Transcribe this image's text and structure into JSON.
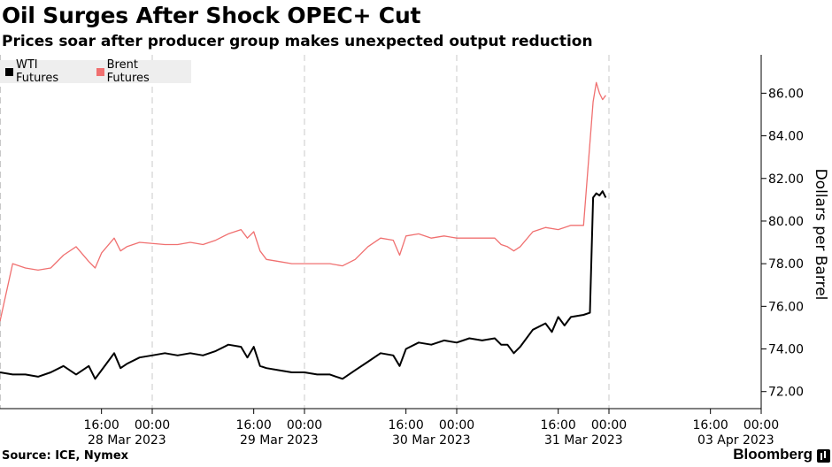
{
  "title": "Oil Surges After Shock OPEC+ Cut",
  "subtitle": "Prices soar after producer group makes unexpected output reduction",
  "source": "Source: ICE, Nymex",
  "brand": "Bloomberg",
  "chart_data": {
    "type": "line",
    "ylabel": "Dollars per Barrel",
    "ylim": [
      71.2,
      87.8
    ],
    "yticks": [
      72,
      74,
      76,
      78,
      80,
      82,
      84,
      86
    ],
    "ytick_labels": [
      "72.00",
      "74.00",
      "76.00",
      "78.00",
      "80.00",
      "82.00",
      "84.00",
      "86.00"
    ],
    "xlim": [
      0,
      120
    ],
    "x_unit": "hours from 00:00 28 Mar 2023",
    "xticks": [
      16,
      24,
      40,
      48,
      64,
      72,
      88,
      96,
      112,
      120
    ],
    "xtick_labels": [
      "16:00",
      "00:00",
      "16:00",
      "00:00",
      "16:00",
      "00:00",
      "16:00",
      "00:00",
      "16:00",
      "00:00"
    ],
    "date_labels": [
      {
        "x": 20,
        "label": "28 Mar 2023"
      },
      {
        "x": 44,
        "label": "29 Mar 2023"
      },
      {
        "x": 68,
        "label": "30 Mar 2023"
      },
      {
        "x": 92,
        "label": "31 Mar 2023"
      },
      {
        "x": 116,
        "label": "03 Apr 2023"
      }
    ],
    "session_breaks": [
      0,
      24,
      48,
      72,
      96
    ],
    "legend_position": "top-left",
    "grid": "vertical",
    "series": [
      {
        "name": "WTI Futures",
        "color": "#000000",
        "points": [
          [
            0,
            72.9
          ],
          [
            2,
            72.8
          ],
          [
            4,
            72.8
          ],
          [
            6,
            72.7
          ],
          [
            8,
            72.9
          ],
          [
            10,
            73.2
          ],
          [
            12,
            72.8
          ],
          [
            14,
            73.2
          ],
          [
            15,
            72.6
          ],
          [
            16,
            73.0
          ],
          [
            18,
            73.8
          ],
          [
            19,
            73.1
          ],
          [
            20,
            73.3
          ],
          [
            22,
            73.6
          ],
          [
            24,
            73.7
          ],
          [
            26,
            73.8
          ],
          [
            28,
            73.7
          ],
          [
            30,
            73.8
          ],
          [
            32,
            73.7
          ],
          [
            34,
            73.9
          ],
          [
            36,
            74.2
          ],
          [
            38,
            74.1
          ],
          [
            39,
            73.6
          ],
          [
            40,
            74.1
          ],
          [
            41,
            73.2
          ],
          [
            42,
            73.1
          ],
          [
            44,
            73.0
          ],
          [
            46,
            72.9
          ],
          [
            48,
            72.9
          ],
          [
            50,
            72.8
          ],
          [
            52,
            72.8
          ],
          [
            53,
            72.7
          ],
          [
            54,
            72.6
          ],
          [
            56,
            73.0
          ],
          [
            58,
            73.4
          ],
          [
            60,
            73.8
          ],
          [
            62,
            73.7
          ],
          [
            63,
            73.2
          ],
          [
            64,
            74.0
          ],
          [
            66,
            74.3
          ],
          [
            68,
            74.2
          ],
          [
            70,
            74.4
          ],
          [
            72,
            74.3
          ],
          [
            74,
            74.5
          ],
          [
            76,
            74.4
          ],
          [
            78,
            74.5
          ],
          [
            79,
            74.2
          ],
          [
            80,
            74.2
          ],
          [
            81,
            73.8
          ],
          [
            82,
            74.1
          ],
          [
            84,
            74.9
          ],
          [
            86,
            75.2
          ],
          [
            87,
            74.8
          ],
          [
            88,
            75.5
          ],
          [
            89,
            75.1
          ],
          [
            90,
            75.5
          ],
          [
            92,
            75.6
          ],
          [
            93,
            75.7
          ],
          [
            93.5,
            81.1
          ],
          [
            94,
            81.3
          ],
          [
            94.5,
            81.2
          ],
          [
            95,
            81.4
          ],
          [
            95.5,
            81.1
          ]
        ]
      },
      {
        "name": "Brent Futures",
        "color": "#f07070",
        "points": [
          [
            0,
            75.3
          ],
          [
            2,
            78.0
          ],
          [
            4,
            77.8
          ],
          [
            6,
            77.7
          ],
          [
            8,
            77.8
          ],
          [
            10,
            78.4
          ],
          [
            12,
            78.8
          ],
          [
            14,
            78.1
          ],
          [
            15,
            77.8
          ],
          [
            16,
            78.5
          ],
          [
            18,
            79.2
          ],
          [
            19,
            78.6
          ],
          [
            20,
            78.8
          ],
          [
            22,
            79.0
          ],
          [
            26,
            78.9
          ],
          [
            28,
            78.9
          ],
          [
            30,
            79.0
          ],
          [
            32,
            78.9
          ],
          [
            34,
            79.1
          ],
          [
            36,
            79.4
          ],
          [
            38,
            79.6
          ],
          [
            39,
            79.2
          ],
          [
            40,
            79.5
          ],
          [
            41,
            78.6
          ],
          [
            42,
            78.2
          ],
          [
            44,
            78.1
          ],
          [
            46,
            78.0
          ],
          [
            48,
            78.0
          ],
          [
            52,
            78.0
          ],
          [
            54,
            77.9
          ],
          [
            56,
            78.2
          ],
          [
            58,
            78.8
          ],
          [
            60,
            79.2
          ],
          [
            62,
            79.1
          ],
          [
            63,
            78.4
          ],
          [
            64,
            79.3
          ],
          [
            66,
            79.4
          ],
          [
            68,
            79.2
          ],
          [
            70,
            79.3
          ],
          [
            72,
            79.2
          ],
          [
            74,
            79.2
          ],
          [
            76,
            79.2
          ],
          [
            78,
            79.2
          ],
          [
            79,
            78.9
          ],
          [
            80,
            78.8
          ],
          [
            81,
            78.6
          ],
          [
            82,
            78.8
          ],
          [
            84,
            79.5
          ],
          [
            86,
            79.7
          ],
          [
            88,
            79.6
          ],
          [
            90,
            79.8
          ],
          [
            92,
            79.8
          ],
          [
            93.5,
            85.6
          ],
          [
            94,
            86.5
          ],
          [
            94.5,
            86.0
          ],
          [
            95,
            85.7
          ],
          [
            95.5,
            85.9
          ]
        ]
      }
    ]
  }
}
